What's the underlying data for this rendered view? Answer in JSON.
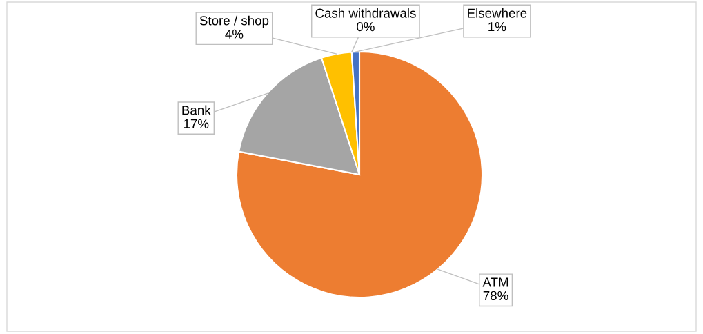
{
  "chart_data": {
    "type": "pie",
    "categories": [
      "ATM",
      "Bank",
      "Store / shop",
      "Cash withdrawals",
      "Elsewhere"
    ],
    "values": [
      78,
      17,
      4,
      0,
      1
    ],
    "value_labels": [
      "78%",
      "17%",
      "4%",
      "0%",
      "1%"
    ],
    "colors": [
      "#ed7d31",
      "#a5a5a5",
      "#ffc000",
      "#5b9bd5",
      "#4472c4"
    ],
    "legend": false
  }
}
